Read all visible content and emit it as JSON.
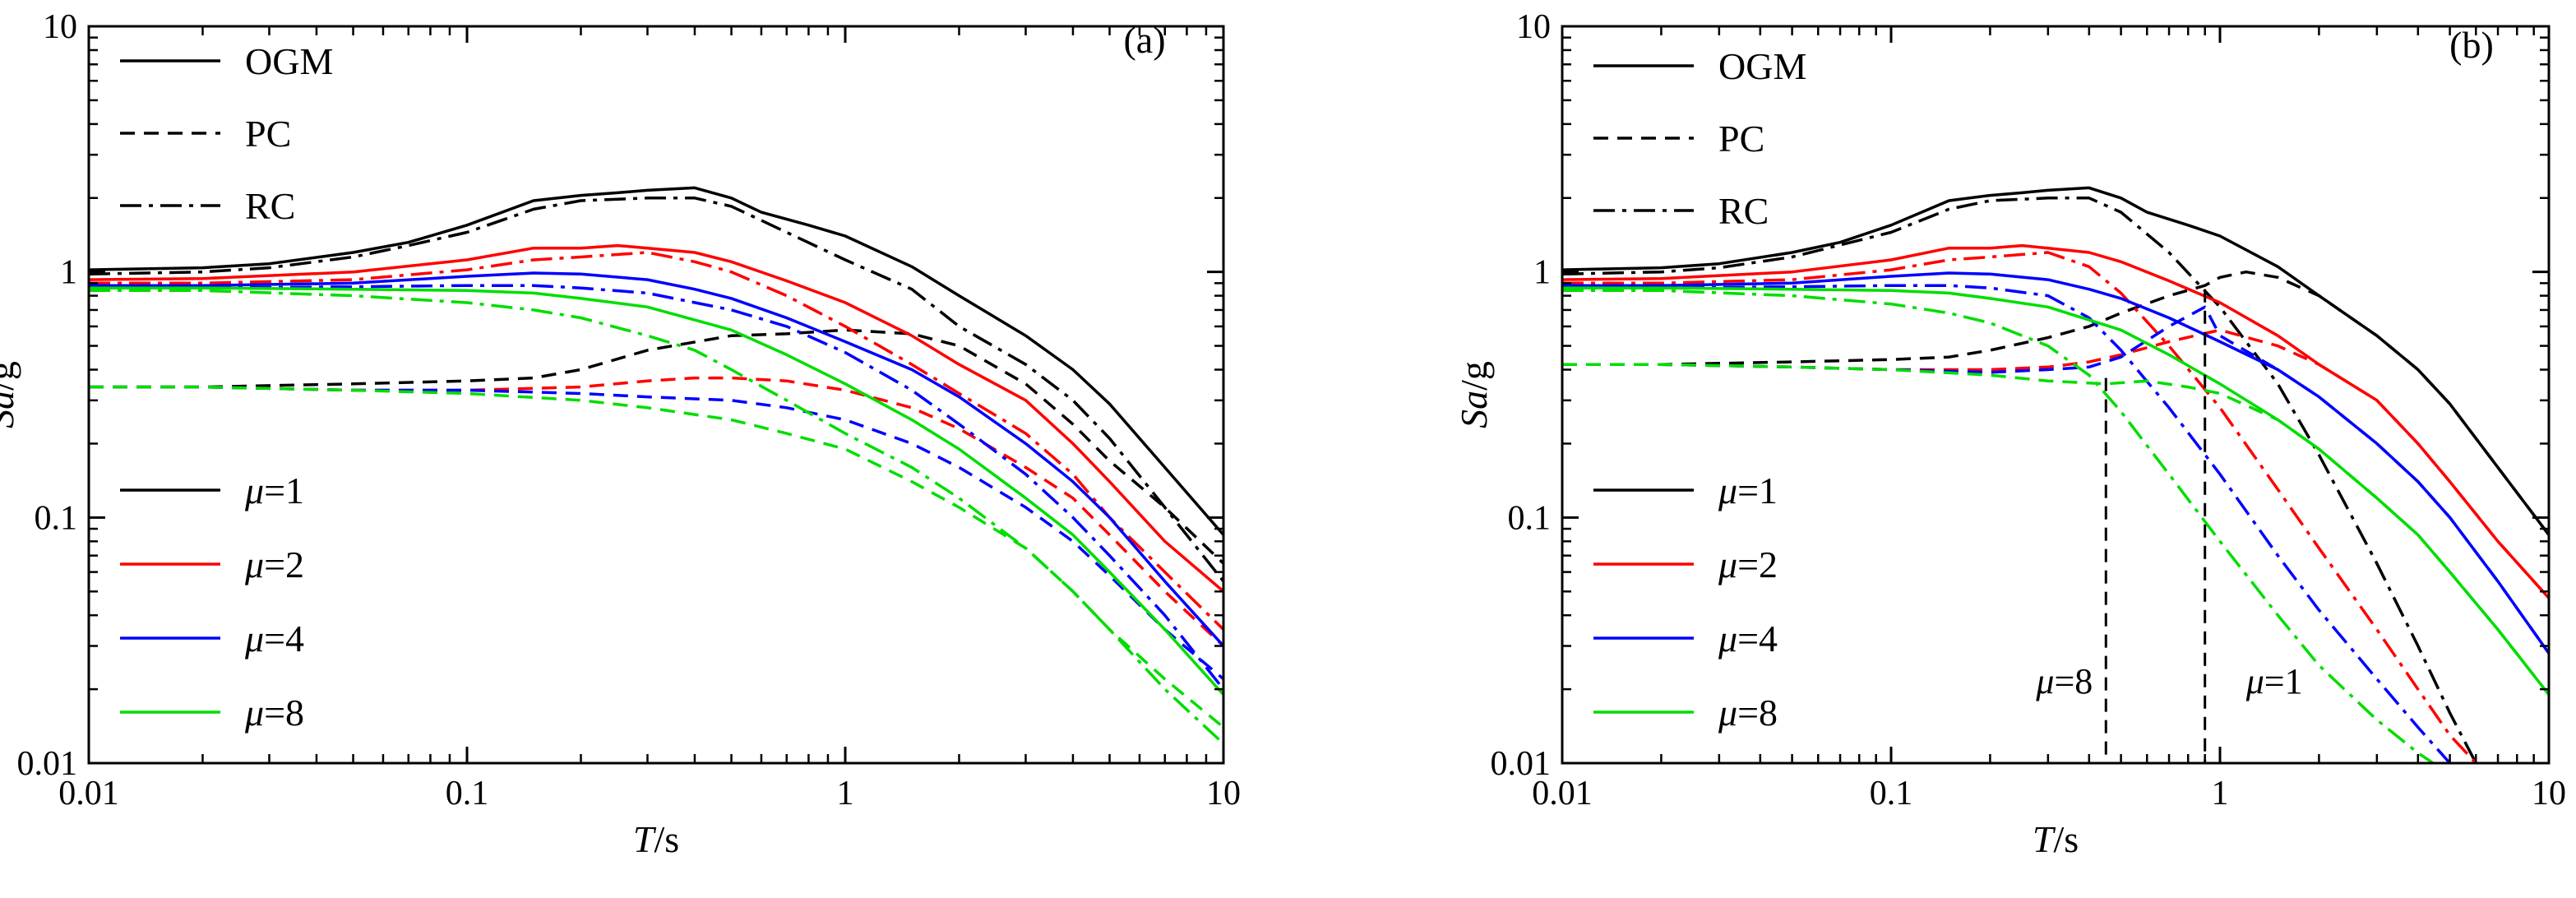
{
  "colors": {
    "mu1": "#000000",
    "mu2": "#ff0000",
    "mu4": "#0000ff",
    "mu8": "#00dd00"
  },
  "legend_styles": [
    {
      "label": "OGM",
      "dash": "solid"
    },
    {
      "label": "PC",
      "dash": "dashed"
    },
    {
      "label": "RC",
      "dash": "dashdot"
    }
  ],
  "legend_colors": [
    {
      "mu": "1",
      "color": "#000000"
    },
    {
      "mu": "2",
      "color": "#ff0000"
    },
    {
      "mu": "4",
      "color": "#0000ff"
    },
    {
      "mu": "8",
      "color": "#00dd00"
    }
  ],
  "chart_data": [
    {
      "type": "line",
      "panel_label": "(a)",
      "xlabel_italic": "T",
      "xlabel_unit": "/s",
      "ylabel_italic": "Sa",
      "ylabel_unit": "/g",
      "xscale": "log",
      "yscale": "log",
      "xlim": [
        0.01,
        10
      ],
      "ylim": [
        0.01,
        10
      ],
      "xticks": [
        0.01,
        0.1,
        1,
        10
      ],
      "xtick_labels": [
        "0.01",
        "0.1",
        "1",
        "10"
      ],
      "yticks": [
        0.01,
        0.1,
        1,
        10
      ],
      "ytick_labels": [
        "0.01",
        "0.1",
        "1",
        "10"
      ],
      "grid": false,
      "annotations": [],
      "series": [
        {
          "mu": "1",
          "style": "OGM",
          "x": [
            0.01,
            0.02,
            0.03,
            0.05,
            0.07,
            0.1,
            0.15,
            0.2,
            0.25,
            0.3,
            0.4,
            0.5,
            0.6,
            0.8,
            1,
            1.5,
            2,
            3,
            4,
            5,
            7,
            10
          ],
          "y": [
            1.02,
            1.04,
            1.08,
            1.2,
            1.32,
            1.55,
            1.95,
            2.05,
            2.1,
            2.15,
            2.2,
            2.0,
            1.75,
            1.55,
            1.4,
            1.05,
            0.8,
            0.55,
            0.4,
            0.29,
            0.16,
            0.085
          ]
        },
        {
          "mu": "1",
          "style": "PC",
          "x": [
            0.01,
            0.02,
            0.05,
            0.1,
            0.15,
            0.2,
            0.3,
            0.5,
            0.7,
            1,
            1.5,
            2,
            3,
            4,
            5,
            7,
            10
          ],
          "y": [
            0.34,
            0.34,
            0.35,
            0.36,
            0.37,
            0.4,
            0.48,
            0.55,
            0.56,
            0.58,
            0.56,
            0.5,
            0.35,
            0.24,
            0.17,
            0.11,
            0.065
          ]
        },
        {
          "mu": "1",
          "style": "RC",
          "x": [
            0.01,
            0.02,
            0.03,
            0.05,
            0.07,
            0.1,
            0.15,
            0.2,
            0.3,
            0.4,
            0.5,
            0.7,
            1,
            1.5,
            2,
            3,
            4,
            5,
            7,
            10
          ],
          "y": [
            0.98,
            1.0,
            1.04,
            1.15,
            1.28,
            1.45,
            1.8,
            1.95,
            2.0,
            2.0,
            1.85,
            1.45,
            1.12,
            0.85,
            0.6,
            0.42,
            0.3,
            0.21,
            0.11,
            0.055
          ]
        },
        {
          "mu": "2",
          "style": "OGM",
          "x": [
            0.01,
            0.02,
            0.05,
            0.1,
            0.15,
            0.2,
            0.25,
            0.3,
            0.4,
            0.5,
            0.7,
            1,
            1.5,
            2,
            3,
            4,
            5,
            7,
            10
          ],
          "y": [
            0.93,
            0.94,
            1.0,
            1.12,
            1.25,
            1.25,
            1.28,
            1.25,
            1.2,
            1.1,
            0.92,
            0.75,
            0.55,
            0.42,
            0.3,
            0.2,
            0.14,
            0.08,
            0.05
          ]
        },
        {
          "mu": "2",
          "style": "PC",
          "x": [
            0.01,
            0.02,
            0.05,
            0.1,
            0.2,
            0.3,
            0.4,
            0.5,
            0.7,
            1,
            1.5,
            2,
            3,
            4,
            5,
            7,
            10
          ],
          "y": [
            0.34,
            0.34,
            0.33,
            0.33,
            0.34,
            0.36,
            0.37,
            0.37,
            0.36,
            0.33,
            0.28,
            0.23,
            0.16,
            0.12,
            0.085,
            0.05,
            0.03
          ]
        },
        {
          "mu": "2",
          "style": "RC",
          "x": [
            0.01,
            0.02,
            0.05,
            0.1,
            0.15,
            0.2,
            0.3,
            0.4,
            0.5,
            0.7,
            1,
            1.5,
            2,
            3,
            4,
            5,
            7,
            10
          ],
          "y": [
            0.9,
            0.9,
            0.93,
            1.02,
            1.12,
            1.15,
            1.2,
            1.1,
            1.0,
            0.8,
            0.6,
            0.42,
            0.32,
            0.22,
            0.15,
            0.1,
            0.06,
            0.035
          ]
        },
        {
          "mu": "4",
          "style": "OGM",
          "x": [
            0.01,
            0.02,
            0.05,
            0.1,
            0.15,
            0.2,
            0.3,
            0.4,
            0.5,
            0.7,
            1,
            1.5,
            2,
            3,
            4,
            5,
            7,
            10
          ],
          "y": [
            0.88,
            0.88,
            0.9,
            0.96,
            0.99,
            0.98,
            0.93,
            0.85,
            0.78,
            0.65,
            0.52,
            0.4,
            0.31,
            0.2,
            0.14,
            0.1,
            0.055,
            0.03
          ]
        },
        {
          "mu": "4",
          "style": "PC",
          "x": [
            0.01,
            0.02,
            0.05,
            0.1,
            0.2,
            0.3,
            0.5,
            0.7,
            1,
            1.5,
            2,
            3,
            4,
            5,
            7,
            10
          ],
          "y": [
            0.34,
            0.34,
            0.33,
            0.33,
            0.32,
            0.31,
            0.3,
            0.28,
            0.25,
            0.2,
            0.16,
            0.11,
            0.08,
            0.058,
            0.035,
            0.022
          ]
        },
        {
          "mu": "4",
          "style": "RC",
          "x": [
            0.01,
            0.02,
            0.05,
            0.1,
            0.15,
            0.2,
            0.3,
            0.5,
            0.7,
            1,
            1.5,
            2,
            3,
            4,
            5,
            7,
            10
          ],
          "y": [
            0.86,
            0.86,
            0.87,
            0.88,
            0.88,
            0.86,
            0.82,
            0.7,
            0.6,
            0.47,
            0.33,
            0.24,
            0.15,
            0.1,
            0.07,
            0.04,
            0.02
          ]
        },
        {
          "mu": "8",
          "style": "OGM",
          "x": [
            0.01,
            0.02,
            0.05,
            0.1,
            0.15,
            0.2,
            0.3,
            0.5,
            0.7,
            1,
            1.5,
            2,
            3,
            4,
            5,
            7,
            10
          ],
          "y": [
            0.86,
            0.86,
            0.85,
            0.84,
            0.82,
            0.78,
            0.72,
            0.58,
            0.46,
            0.35,
            0.25,
            0.19,
            0.12,
            0.085,
            0.06,
            0.035,
            0.019
          ]
        },
        {
          "mu": "8",
          "style": "PC",
          "x": [
            0.01,
            0.02,
            0.05,
            0.1,
            0.2,
            0.3,
            0.5,
            0.7,
            1,
            1.5,
            2,
            3,
            4,
            5,
            7,
            10
          ],
          "y": [
            0.34,
            0.34,
            0.33,
            0.32,
            0.3,
            0.28,
            0.25,
            0.22,
            0.19,
            0.14,
            0.11,
            0.075,
            0.05,
            0.035,
            0.022,
            0.014
          ]
        },
        {
          "mu": "8",
          "style": "RC",
          "x": [
            0.01,
            0.02,
            0.05,
            0.1,
            0.15,
            0.2,
            0.3,
            0.4,
            0.5,
            0.7,
            1,
            1.5,
            2,
            3,
            4,
            5,
            7,
            10
          ],
          "y": [
            0.84,
            0.84,
            0.8,
            0.75,
            0.7,
            0.65,
            0.55,
            0.48,
            0.4,
            0.3,
            0.22,
            0.16,
            0.12,
            0.075,
            0.05,
            0.035,
            0.02,
            0.012
          ]
        }
      ]
    },
    {
      "type": "line",
      "panel_label": "(b)",
      "xlabel_italic": "T",
      "xlabel_unit": "/s",
      "ylabel_italic": "Sa",
      "ylabel_unit": "/g",
      "xscale": "log",
      "yscale": "log",
      "xlim": [
        0.01,
        10
      ],
      "ylim": [
        0.01,
        10
      ],
      "xticks": [
        0.01,
        0.1,
        1,
        10
      ],
      "xtick_labels": [
        "0.01",
        "0.1",
        "1",
        "10"
      ],
      "yticks": [
        0.01,
        0.1,
        1,
        10
      ],
      "ytick_labels": [
        "0.01",
        "0.1",
        "1",
        "10"
      ],
      "grid": false,
      "annotations": [
        {
          "mu": "8",
          "x": 0.45,
          "y_top": 0.37
        },
        {
          "mu": "1",
          "x": 0.9,
          "y_top": 0.85
        }
      ],
      "series": [
        {
          "mu": "1",
          "style": "OGM",
          "x": [
            0.01,
            0.02,
            0.03,
            0.05,
            0.07,
            0.1,
            0.15,
            0.2,
            0.25,
            0.3,
            0.4,
            0.5,
            0.6,
            0.8,
            1,
            1.5,
            2,
            3,
            4,
            5,
            7,
            10
          ],
          "y": [
            1.02,
            1.04,
            1.08,
            1.2,
            1.32,
            1.55,
            1.95,
            2.05,
            2.1,
            2.15,
            2.2,
            2.0,
            1.75,
            1.55,
            1.4,
            1.05,
            0.8,
            0.55,
            0.4,
            0.29,
            0.16,
            0.085
          ]
        },
        {
          "mu": "1",
          "style": "PC",
          "x": [
            0.01,
            0.02,
            0.05,
            0.1,
            0.15,
            0.2,
            0.3,
            0.4,
            0.5,
            0.7,
            0.9,
            1,
            1.2,
            1.5,
            2,
            3,
            4,
            5,
            7,
            10
          ],
          "y": [
            0.42,
            0.42,
            0.43,
            0.44,
            0.45,
            0.48,
            0.54,
            0.6,
            0.68,
            0.8,
            0.88,
            0.95,
            1.0,
            0.95,
            0.8,
            0.55,
            0.4,
            0.29,
            0.16,
            0.085
          ]
        },
        {
          "mu": "1",
          "style": "RC",
          "x": [
            0.01,
            0.02,
            0.03,
            0.05,
            0.1,
            0.15,
            0.2,
            0.3,
            0.4,
            0.5,
            0.7,
            1,
            1.5,
            2,
            3,
            4,
            5,
            6
          ],
          "y": [
            0.98,
            1.0,
            1.04,
            1.15,
            1.45,
            1.8,
            1.95,
            2.0,
            2.0,
            1.75,
            1.2,
            0.72,
            0.35,
            0.18,
            0.065,
            0.03,
            0.016,
            0.01
          ]
        },
        {
          "mu": "2",
          "style": "OGM",
          "x": [
            0.01,
            0.02,
            0.05,
            0.1,
            0.15,
            0.2,
            0.25,
            0.3,
            0.4,
            0.5,
            0.7,
            1,
            1.5,
            2,
            3,
            4,
            5,
            7,
            10
          ],
          "y": [
            0.93,
            0.94,
            1.0,
            1.12,
            1.25,
            1.25,
            1.28,
            1.25,
            1.2,
            1.1,
            0.92,
            0.75,
            0.55,
            0.42,
            0.3,
            0.2,
            0.14,
            0.08,
            0.047
          ]
        },
        {
          "mu": "2",
          "style": "PC",
          "x": [
            0.01,
            0.02,
            0.05,
            0.1,
            0.2,
            0.3,
            0.4,
            0.5,
            0.7,
            1,
            1.5,
            2,
            3,
            4,
            5,
            7,
            10
          ],
          "y": [
            0.42,
            0.42,
            0.41,
            0.4,
            0.4,
            0.41,
            0.43,
            0.46,
            0.52,
            0.58,
            0.5,
            0.42,
            0.3,
            0.2,
            0.14,
            0.08,
            0.047
          ]
        },
        {
          "mu": "2",
          "style": "RC",
          "x": [
            0.01,
            0.02,
            0.05,
            0.1,
            0.15,
            0.2,
            0.3,
            0.4,
            0.5,
            0.7,
            1,
            1.5,
            2,
            3,
            4,
            5,
            6
          ],
          "y": [
            0.9,
            0.9,
            0.93,
            1.02,
            1.12,
            1.15,
            1.2,
            1.05,
            0.82,
            0.5,
            0.28,
            0.13,
            0.075,
            0.035,
            0.02,
            0.013,
            0.01
          ]
        },
        {
          "mu": "4",
          "style": "OGM",
          "x": [
            0.01,
            0.02,
            0.05,
            0.1,
            0.15,
            0.2,
            0.3,
            0.4,
            0.5,
            0.7,
            1,
            1.5,
            2,
            3,
            4,
            5,
            7,
            10
          ],
          "y": [
            0.88,
            0.88,
            0.9,
            0.96,
            0.99,
            0.98,
            0.93,
            0.85,
            0.78,
            0.65,
            0.52,
            0.4,
            0.31,
            0.2,
            0.14,
            0.1,
            0.055,
            0.028
          ]
        },
        {
          "mu": "4",
          "style": "PC",
          "x": [
            0.01,
            0.02,
            0.05,
            0.1,
            0.2,
            0.3,
            0.4,
            0.5,
            0.7,
            0.9,
            1,
            1.5,
            2,
            3,
            4,
            5,
            7,
            10
          ],
          "y": [
            0.42,
            0.42,
            0.41,
            0.4,
            0.39,
            0.4,
            0.41,
            0.45,
            0.6,
            0.72,
            0.55,
            0.4,
            0.31,
            0.2,
            0.14,
            0.1,
            0.055,
            0.028
          ]
        },
        {
          "mu": "4",
          "style": "RC",
          "x": [
            0.01,
            0.02,
            0.05,
            0.1,
            0.15,
            0.2,
            0.3,
            0.4,
            0.5,
            0.7,
            1,
            1.5,
            2,
            3,
            4,
            5
          ],
          "y": [
            0.86,
            0.86,
            0.87,
            0.88,
            0.88,
            0.86,
            0.8,
            0.65,
            0.48,
            0.28,
            0.15,
            0.07,
            0.042,
            0.022,
            0.014,
            0.01
          ]
        },
        {
          "mu": "8",
          "style": "OGM",
          "x": [
            0.01,
            0.02,
            0.05,
            0.1,
            0.15,
            0.2,
            0.3,
            0.5,
            0.7,
            1,
            1.5,
            2,
            3,
            4,
            5,
            7,
            10
          ],
          "y": [
            0.86,
            0.86,
            0.85,
            0.84,
            0.82,
            0.78,
            0.72,
            0.58,
            0.46,
            0.35,
            0.25,
            0.19,
            0.12,
            0.085,
            0.06,
            0.035,
            0.019
          ]
        },
        {
          "mu": "8",
          "style": "PC",
          "x": [
            0.01,
            0.02,
            0.05,
            0.1,
            0.2,
            0.3,
            0.45,
            0.6,
            0.8,
            1,
            1.5,
            2,
            3,
            4,
            5,
            7,
            10
          ],
          "y": [
            0.42,
            0.42,
            0.41,
            0.4,
            0.38,
            0.36,
            0.35,
            0.36,
            0.34,
            0.32,
            0.25,
            0.19,
            0.12,
            0.085,
            0.06,
            0.035,
            0.019
          ]
        },
        {
          "mu": "8",
          "style": "RC",
          "x": [
            0.01,
            0.02,
            0.05,
            0.1,
            0.15,
            0.2,
            0.3,
            0.4,
            0.5,
            0.7,
            1,
            1.5,
            2,
            3,
            4,
            5
          ],
          "y": [
            0.84,
            0.84,
            0.8,
            0.74,
            0.68,
            0.62,
            0.5,
            0.38,
            0.27,
            0.15,
            0.08,
            0.04,
            0.025,
            0.015,
            0.011,
            0.009
          ]
        }
      ]
    }
  ]
}
